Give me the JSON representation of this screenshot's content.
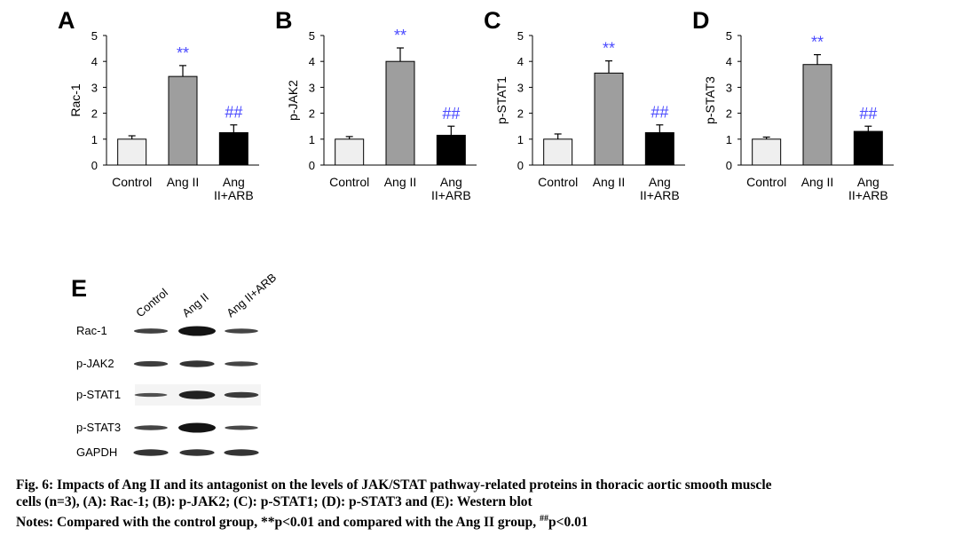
{
  "chart_data": [
    {
      "panel": "A",
      "type": "bar",
      "ylabel": "Rac-1",
      "ylim": [
        0,
        5
      ],
      "yticks": [
        0,
        1,
        2,
        3,
        4,
        5
      ],
      "categories": [
        "Control",
        "Ang II",
        "Ang II+ARB"
      ],
      "category_lines": [
        [
          "Control"
        ],
        [
          "Ang II"
        ],
        [
          "Ang",
          "II+ARB"
        ]
      ],
      "values": [
        1.0,
        3.42,
        1.25
      ],
      "errors": [
        0.13,
        0.42,
        0.3
      ],
      "bar_colors": [
        "#efefef",
        "#9e9e9e",
        "#000000"
      ],
      "annotations": [
        "",
        "**",
        "##"
      ]
    },
    {
      "panel": "B",
      "type": "bar",
      "ylabel": "p-JAK2",
      "ylim": [
        0,
        5
      ],
      "yticks": [
        0,
        1,
        2,
        3,
        4,
        5
      ],
      "categories": [
        "Control",
        "Ang II",
        "Ang II+ARB"
      ],
      "category_lines": [
        [
          "Control"
        ],
        [
          "Ang II"
        ],
        [
          "Ang",
          "II+ARB"
        ]
      ],
      "values": [
        1.0,
        4.0,
        1.15
      ],
      "errors": [
        0.1,
        0.52,
        0.35
      ],
      "bar_colors": [
        "#efefef",
        "#9e9e9e",
        "#000000"
      ],
      "annotations": [
        "",
        "**",
        "##"
      ]
    },
    {
      "panel": "C",
      "type": "bar",
      "ylabel": "p-STAT1",
      "ylim": [
        0,
        5
      ],
      "yticks": [
        0,
        1,
        2,
        3,
        4,
        5
      ],
      "categories": [
        "Control",
        "Ang II",
        "Ang II+ARB"
      ],
      "category_lines": [
        [
          "Control"
        ],
        [
          "Ang II"
        ],
        [
          "Ang",
          "II+ARB"
        ]
      ],
      "values": [
        1.0,
        3.55,
        1.25
      ],
      "errors": [
        0.2,
        0.47,
        0.3
      ],
      "bar_colors": [
        "#efefef",
        "#9e9e9e",
        "#000000"
      ],
      "annotations": [
        "",
        "**",
        "##"
      ]
    },
    {
      "panel": "D",
      "type": "bar",
      "ylabel": "p-STAT3",
      "ylim": [
        0,
        5
      ],
      "yticks": [
        0,
        1,
        2,
        3,
        4,
        5
      ],
      "categories": [
        "Control",
        "Ang II",
        "Ang II+ARB"
      ],
      "category_lines": [
        [
          "Control"
        ],
        [
          "Ang II"
        ],
        [
          "Ang",
          "II+ARB"
        ]
      ],
      "values": [
        1.0,
        3.88,
        1.3
      ],
      "errors": [
        0.08,
        0.38,
        0.2
      ],
      "bar_colors": [
        "#efefef",
        "#9e9e9e",
        "#000000"
      ],
      "annotations": [
        "",
        "**",
        "##"
      ]
    }
  ],
  "annotation_color": "#4a4aff",
  "blot": {
    "panel": "E",
    "lanes": [
      "Control",
      "Ang II",
      "Ang II+ARB"
    ],
    "rows": [
      {
        "label": "Rac-1",
        "intensity": [
          0.35,
          1.0,
          0.3
        ]
      },
      {
        "label": "p-JAK2",
        "intensity": [
          0.4,
          0.55,
          0.3
        ]
      },
      {
        "label": "p-STAT1",
        "intensity": [
          0.15,
          0.8,
          0.45
        ]
      },
      {
        "label": "p-STAT3",
        "intensity": [
          0.3,
          1.0,
          0.25
        ]
      },
      {
        "label": "GAPDH",
        "intensity": [
          0.55,
          0.55,
          0.55
        ]
      }
    ]
  },
  "caption": {
    "line1": "Fig. 6: Impacts of Ang II and its antagonist on the levels of JAK/STAT pathway-related proteins in thoracic aortic smooth muscle",
    "line2": "cells (n=3), (A): Rac-1; (B): p-JAK2; (C): p-STAT1; (D): p-STAT3 and (E): Western blot",
    "line3_pre": "Notes: Compared with the control group, **p<0.01 and compared with the Ang II group, ",
    "line3_sup": "##",
    "line3_post": "p<0.01"
  }
}
